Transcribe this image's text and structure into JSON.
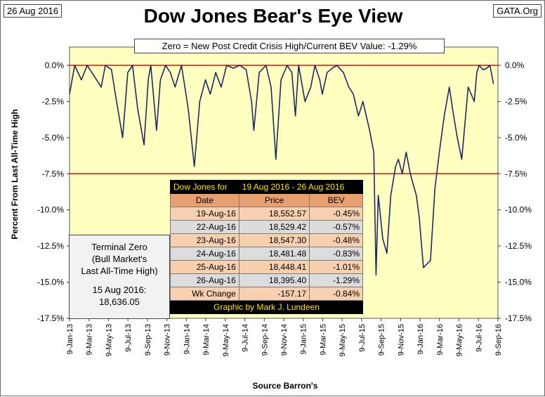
{
  "header": {
    "date_stamp": "26 Aug 2016",
    "site_stamp": "GATA.Org",
    "title": "Dow Jones Bear's Eye View",
    "subtitle": "Zero = New Post Credit Crisis High/Current BEV Value:  -1.29%"
  },
  "terminal_box": {
    "line1": "Terminal Zero",
    "line2": "(Bull Market's",
    "line3": "Last All-Time High)",
    "line4": "15 Aug 2016:",
    "line5": "18,636.05"
  },
  "table": {
    "head_left": "Dow Jones for",
    "head_right": "19 Aug 2016 - 26 Aug 2016",
    "col_date": "Date",
    "col_price": "Price",
    "col_bev": "BEV",
    "rows": [
      {
        "date": "19-Aug-16",
        "price": "18,552.57",
        "bev": "-0.45%"
      },
      {
        "date": "22-Aug-16",
        "price": "18,529.42",
        "bev": "-0.57%"
      },
      {
        "date": "23-Aug-16",
        "price": "18,547.30",
        "bev": "-0.48%"
      },
      {
        "date": "24-Aug-16",
        "price": "18,481.48",
        "bev": "-0.83%"
      },
      {
        "date": "25-Aug-16",
        "price": "18,448.41",
        "bev": "-1.01%"
      },
      {
        "date": "26-Aug-16",
        "price": "18,395.40",
        "bev": "-1.29%"
      }
    ],
    "wk_label": "Wk Change",
    "wk_price": "-157.17",
    "wk_bev": "-0.84%",
    "credit": "Graphic by Mark J. Lundeen"
  },
  "chart_data": {
    "type": "line",
    "xlabel": "Source Barron's",
    "ylabel": "Percent From Last All-Time High",
    "ylim": [
      -17.5,
      0
    ],
    "yticks": [
      "0.0%",
      "-2.5%",
      "-5.0%",
      "-7.5%",
      "-10.0%",
      "-12.5%",
      "-15.0%",
      "-17.5%"
    ],
    "ytick_values": [
      0,
      -2.5,
      -5,
      -7.5,
      -10,
      -12.5,
      -15,
      -17.5
    ],
    "xlim": [
      "2013-01-09",
      "2016-09-09"
    ],
    "xticks": [
      "9-Jan-13",
      "9-Mar-13",
      "9-May-13",
      "9-Jul-13",
      "9-Sep-13",
      "9-Nov-13",
      "9-Jan-14",
      "9-Mar-14",
      "9-May-14",
      "9-Jul-14",
      "9-Sep-14",
      "9-Nov-14",
      "9-Jan-15",
      "9-Mar-15",
      "9-May-15",
      "9-Jul-15",
      "9-Sep-15",
      "9-Nov-15",
      "9-Jan-16",
      "9-Mar-16",
      "9-May-16",
      "9-Jul-16",
      "9-Sep-16"
    ],
    "reference_lines": [
      0,
      -7.5
    ],
    "grid": false,
    "colors": {
      "plot_bg": "#ffffc0",
      "line": "#1a2a66",
      "ref": "#ff0000"
    },
    "series": [
      {
        "x": [
          "2013-01-09",
          "2013-01-25",
          "2013-02-15",
          "2013-03-05",
          "2013-03-20",
          "2013-04-18",
          "2013-05-01",
          "2013-05-20",
          "2013-06-05",
          "2013-06-24",
          "2013-07-10",
          "2013-07-25",
          "2013-08-10",
          "2013-08-30",
          "2013-09-12",
          "2013-09-20",
          "2013-10-08",
          "2013-10-20",
          "2013-11-05",
          "2013-11-20",
          "2013-12-05",
          "2013-12-25",
          "2014-01-15",
          "2014-02-03",
          "2014-02-20",
          "2014-03-10",
          "2014-03-25",
          "2014-04-11",
          "2014-04-28",
          "2014-05-15",
          "2014-06-05",
          "2014-06-25",
          "2014-07-15",
          "2014-08-01",
          "2014-08-08",
          "2014-08-25",
          "2014-09-15",
          "2014-10-01",
          "2014-10-16",
          "2014-11-01",
          "2014-11-20",
          "2014-12-05",
          "2014-12-16",
          "2014-12-26",
          "2015-01-15",
          "2015-02-02",
          "2015-02-15",
          "2015-03-02",
          "2015-03-10",
          "2015-03-25",
          "2015-04-10",
          "2015-04-25",
          "2015-05-15",
          "2015-06-01",
          "2015-06-15",
          "2015-07-01",
          "2015-07-15",
          "2015-08-05",
          "2015-08-18",
          "2015-08-25",
          "2015-09-01",
          "2015-09-15",
          "2015-09-28",
          "2015-10-10",
          "2015-10-25",
          "2015-11-03",
          "2015-11-15",
          "2015-11-27",
          "2015-12-10",
          "2015-12-29",
          "2016-01-07",
          "2016-01-20",
          "2016-02-11",
          "2016-02-25",
          "2016-03-10",
          "2016-03-25",
          "2016-04-10",
          "2016-04-20",
          "2016-05-05",
          "2016-05-19",
          "2016-06-08",
          "2016-06-27",
          "2016-07-05",
          "2016-07-12",
          "2016-07-25",
          "2016-08-05",
          "2016-08-15",
          "2016-08-26"
        ],
        "y": [
          -2.0,
          0,
          -1.0,
          0,
          -0.5,
          -1.5,
          0,
          -0.3,
          -2.5,
          -5.0,
          -0.5,
          0,
          -3.0,
          -5.5,
          -1.0,
          0,
          -4.5,
          -1.0,
          0,
          -0.5,
          -1.5,
          0,
          -3.0,
          -7.0,
          -2.5,
          -1.0,
          -2.0,
          -0.5,
          -1.5,
          0,
          -0.2,
          0,
          -0.3,
          -2.5,
          -4.5,
          -0.5,
          0,
          -1.5,
          -6.5,
          -1.0,
          0,
          -0.5,
          -3.5,
          0,
          -2.5,
          -1.5,
          0,
          -1.0,
          -2.0,
          -0.5,
          -0.2,
          0,
          -0.5,
          -1.5,
          -2.0,
          -3.5,
          -2.5,
          -4.5,
          -6.0,
          -14.5,
          -9.0,
          -12.0,
          -13.0,
          -9.0,
          -7.0,
          -6.5,
          -7.5,
          -6.0,
          -7.5,
          -9.0,
          -10.5,
          -14.0,
          -13.5,
          -8.5,
          -6.0,
          -3.5,
          -1.5,
          -3.0,
          -5.0,
          -6.5,
          -1.5,
          -2.5,
          -0.5,
          0,
          -0.3,
          -0.2,
          0,
          -1.29
        ]
      }
    ]
  }
}
